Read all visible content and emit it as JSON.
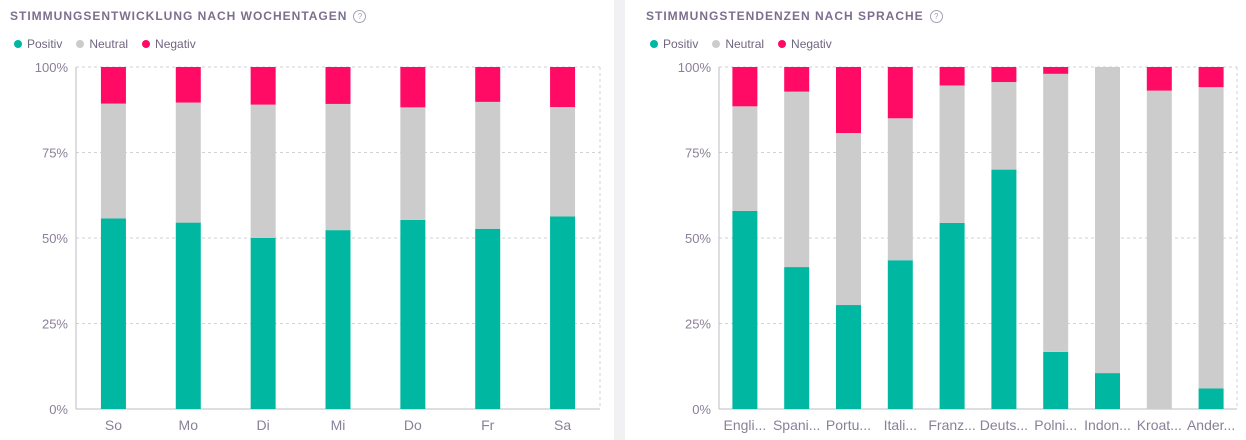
{
  "colors": {
    "positiv": "#00b8a2",
    "neutral": "#cccccc",
    "negativ": "#ff0a64",
    "axis_text": "#8a8098",
    "grid": "#d2d2d8"
  },
  "charts": [
    {
      "title": "STIMMUNGSENTWICKLUNG NACH WOCHENTAGEN",
      "help_icon": "question-circle-icon",
      "legend": [
        "Positiv",
        "Neutral",
        "Negativ"
      ],
      "chart_data": {
        "type": "bar",
        "stacked": true,
        "categories": [
          "So",
          "Mo",
          "Di",
          "Mi",
          "Do",
          "Fr",
          "Sa"
        ],
        "series": [
          {
            "name": "Positiv",
            "values": [
              55.7,
              54.5,
              50.0,
              52.3,
              55.3,
              52.7,
              56.3
            ]
          },
          {
            "name": "Neutral",
            "values": [
              33.6,
              35.1,
              39.0,
              36.9,
              32.9,
              37.1,
              32.0
            ]
          },
          {
            "name": "Negativ",
            "values": [
              10.7,
              10.4,
              11.0,
              10.8,
              11.8,
              10.2,
              11.7
            ]
          }
        ],
        "yticks": [
          "0%",
          "25%",
          "50%",
          "75%",
          "100%"
        ],
        "ylim": [
          0,
          100
        ],
        "grid": true,
        "legend_position": "top-left"
      }
    },
    {
      "title": "STIMMUNGSTENDENZEN NACH SPRACHE",
      "help_icon": "question-circle-icon",
      "legend": [
        "Positiv",
        "Neutral",
        "Negativ"
      ],
      "chart_data": {
        "type": "bar",
        "stacked": true,
        "categories": [
          "Engli...",
          "Spani...",
          "Portu...",
          "Itali...",
          "Franz...",
          "Deuts...",
          "Polni...",
          "Indon...",
          "Kroat...",
          "Ander..."
        ],
        "series": [
          {
            "name": "Positiv",
            "values": [
              57.9,
              41.5,
              30.4,
              43.5,
              54.4,
              70.0,
              16.7,
              10.5,
              0,
              6.0
            ]
          },
          {
            "name": "Neutral",
            "values": [
              30.6,
              51.3,
              50.3,
              41.5,
              40.2,
              25.6,
              81.3,
              89.5,
              93.1,
              88.1
            ]
          },
          {
            "name": "Negativ",
            "values": [
              11.5,
              7.2,
              19.3,
              15.0,
              5.4,
              4.4,
              2.0,
              0,
              6.9,
              5.9
            ]
          }
        ],
        "yticks": [
          "0%",
          "25%",
          "50%",
          "75%",
          "100%"
        ],
        "ylim": [
          0,
          100
        ],
        "grid": true,
        "legend_position": "top-left"
      }
    }
  ]
}
